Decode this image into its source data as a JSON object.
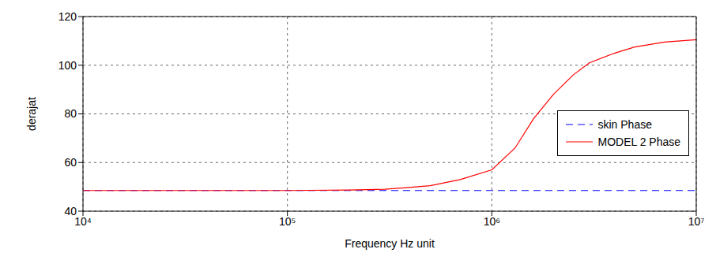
{
  "chart_data": {
    "type": "line",
    "x_label": "Frequency Hz unit",
    "y_label": "derajat",
    "x": [
      10000,
      100000,
      200000,
      300000,
      500000,
      700000,
      1000000,
      1300000,
      1600000,
      2000000,
      2500000,
      3000000,
      4000000,
      5000000,
      7000000,
      10000000
    ],
    "series": [
      {
        "name": "skin Phase",
        "color": "#0000ff",
        "line_style": "dashed",
        "values": [
          48.5,
          48.5,
          48.5,
          48.5,
          48.5,
          48.5,
          48.5,
          48.5,
          48.5,
          48.5,
          48.5,
          48.5,
          48.5,
          48.5,
          48.5,
          48.5
        ]
      },
      {
        "name": "MODEL 2 Phase",
        "color": "#ff0000",
        "line_style": "solid",
        "values": [
          48.5,
          48.5,
          48.7,
          49,
          50.5,
          53,
          57,
          66,
          78,
          88,
          96,
          101,
          105,
          107.5,
          109.5,
          110.5
        ]
      }
    ],
    "log": "x",
    "xlim": [
      10000,
      10000000
    ],
    "xticks": [
      {
        "value": 10000,
        "label": "10⁴"
      },
      {
        "value": 100000,
        "label": "10⁵"
      },
      {
        "value": 1000000,
        "label": "10⁶"
      },
      {
        "value": 10000000,
        "label": "10⁷"
      }
    ],
    "ylim": [
      40,
      120
    ],
    "yticks": [
      40,
      60,
      80,
      100,
      120
    ],
    "grid": true,
    "legend": "right"
  }
}
